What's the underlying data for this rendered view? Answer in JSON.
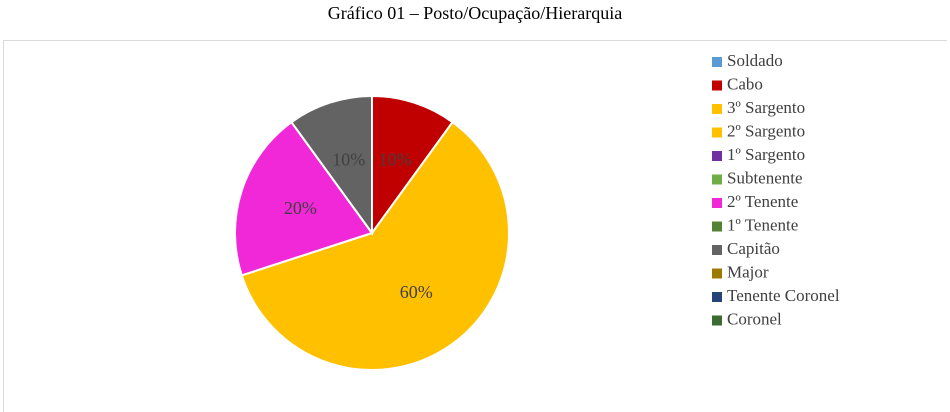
{
  "chart_data": {
    "type": "pie",
    "title": "Gráfico 01 – Posto/Ocupação/Hierarquia",
    "categories": [
      "Soldado",
      "Cabo",
      "3º Sargento",
      "2º Sargento",
      "1º Sargento",
      "Subtenente",
      "2º Tenente",
      "1º Tenente",
      "Capitão",
      "Major",
      "Tenente Coronel",
      "Coronel"
    ],
    "values": [
      0,
      10,
      60,
      0,
      0,
      0,
      20,
      0,
      10,
      0,
      0,
      0
    ],
    "value_labels": [
      null,
      "10%",
      "60%",
      null,
      null,
      null,
      "20%",
      null,
      "10%",
      null,
      null,
      null
    ],
    "colors": [
      "#5b9bd5",
      "#c00000",
      "#ffc000",
      "#ffc000",
      "#7030a0",
      "#70ad47",
      "#f028d8",
      "#548235",
      "#636363",
      "#9c7a00",
      "#264478",
      "#3b6b2f"
    ],
    "legend": "right"
  }
}
